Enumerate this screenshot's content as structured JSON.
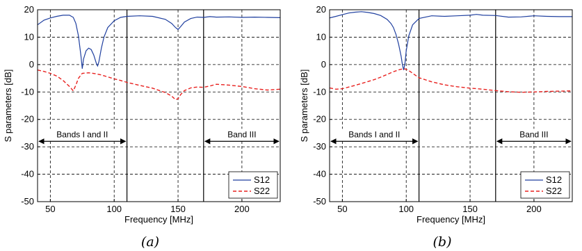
{
  "captions": [
    "(a)",
    "(b)"
  ],
  "colors": {
    "s12": "#1f3f9f",
    "s22": "#e8201e",
    "frame": "#000000",
    "grid": "#000000"
  },
  "chart_data": [
    {
      "type": "line",
      "xlabel": "Frequency [MHz]",
      "ylabel": "S parameters [dB]",
      "xlim": [
        40,
        230
      ],
      "ylim": [
        -50,
        20
      ],
      "xticks": [
        50,
        100,
        150,
        200
      ],
      "yticks": [
        -50,
        -40,
        -30,
        -20,
        -10,
        0,
        10,
        20
      ],
      "grid": true,
      "grid_style": "dashed",
      "legend_position": "bottom-right",
      "band_lines": [
        110,
        170
      ],
      "bands": [
        {
          "label": "Bands I and II",
          "from": 40,
          "to": 110,
          "level": -28
        },
        {
          "label": "Band III",
          "from": 170,
          "to": 230,
          "level": -28
        }
      ],
      "series": [
        {
          "name": "S12",
          "style": "solid",
          "x": [
            40,
            45,
            50,
            55,
            60,
            65,
            68,
            70,
            72,
            74,
            75,
            76,
            78,
            80,
            82,
            84,
            86,
            87,
            88,
            90,
            92,
            95,
            100,
            105,
            110,
            120,
            130,
            140,
            145,
            148,
            150,
            152,
            155,
            160,
            165,
            170,
            175,
            180,
            190,
            200,
            210,
            220,
            230
          ],
          "y": [
            14.5,
            16.2,
            17.0,
            17.6,
            18.0,
            18.0,
            17.2,
            15.0,
            10.5,
            3.0,
            -1.5,
            2.0,
            5.0,
            6.0,
            5.5,
            3.5,
            0.5,
            -0.5,
            1.0,
            6.0,
            10.0,
            13.5,
            16.0,
            17.2,
            17.6,
            17.8,
            17.6,
            16.5,
            15.0,
            13.5,
            12.8,
            13.8,
            15.5,
            16.8,
            17.3,
            17.2,
            17.5,
            17.3,
            17.4,
            17.2,
            17.3,
            17.2,
            17.1
          ]
        },
        {
          "name": "S22",
          "style": "dashed",
          "x": [
            40,
            45,
            50,
            55,
            60,
            65,
            68,
            70,
            72,
            75,
            80,
            85,
            90,
            95,
            100,
            105,
            110,
            120,
            130,
            140,
            145,
            148,
            150,
            152,
            155,
            160,
            165,
            170,
            175,
            180,
            190,
            200,
            210,
            220,
            230
          ],
          "y": [
            -2.0,
            -2.5,
            -3.2,
            -4.2,
            -5.8,
            -8.0,
            -9.6,
            -7.5,
            -5.0,
            -3.2,
            -3.0,
            -3.3,
            -3.8,
            -4.5,
            -5.2,
            -5.8,
            -6.5,
            -7.6,
            -8.6,
            -10.2,
            -11.5,
            -12.8,
            -12.5,
            -11.0,
            -9.5,
            -8.5,
            -8.2,
            -8.3,
            -7.8,
            -7.2,
            -7.5,
            -8.0,
            -8.8,
            -9.3,
            -9.0
          ]
        }
      ]
    },
    {
      "type": "line",
      "xlabel": "Frequency [MHz]",
      "ylabel": "S parameters [dB]",
      "xlim": [
        40,
        230
      ],
      "ylim": [
        -50,
        20
      ],
      "xticks": [
        50,
        100,
        150,
        200
      ],
      "yticks": [
        -50,
        -40,
        -30,
        -20,
        -10,
        0,
        10,
        20
      ],
      "grid": true,
      "grid_style": "dashed",
      "legend_position": "bottom-right",
      "band_lines": [
        110,
        170
      ],
      "bands": [
        {
          "label": "Bands I and II",
          "from": 40,
          "to": 110,
          "level": -28
        },
        {
          "label": "Band III",
          "from": 170,
          "to": 230,
          "level": -28
        }
      ],
      "series": [
        {
          "name": "S12",
          "style": "solid",
          "x": [
            40,
            45,
            50,
            55,
            60,
            65,
            70,
            75,
            80,
            85,
            88,
            90,
            92,
            94,
            96,
            97,
            98,
            99,
            100,
            102,
            105,
            110,
            120,
            130,
            140,
            150,
            155,
            160,
            170,
            180,
            190,
            200,
            210,
            220,
            230
          ],
          "y": [
            17.0,
            17.6,
            18.2,
            18.8,
            19.1,
            19.3,
            19.0,
            18.6,
            17.9,
            16.5,
            15.0,
            13.5,
            11.0,
            7.5,
            3.0,
            0.0,
            -2.0,
            0.5,
            5.0,
            10.5,
            14.5,
            16.8,
            17.8,
            17.6,
            17.8,
            18.0,
            18.3,
            18.0,
            17.9,
            17.3,
            17.4,
            17.8,
            17.6,
            17.5,
            17.5
          ]
        },
        {
          "name": "S22",
          "style": "dashed",
          "x": [
            40,
            45,
            50,
            55,
            60,
            65,
            70,
            75,
            80,
            85,
            90,
            95,
            98,
            100,
            103,
            106,
            110,
            120,
            130,
            140,
            150,
            160,
            170,
            180,
            190,
            200,
            210,
            220,
            230
          ],
          "y": [
            -8.5,
            -9.0,
            -8.8,
            -8.2,
            -7.6,
            -6.9,
            -6.2,
            -5.5,
            -4.6,
            -3.6,
            -2.6,
            -1.8,
            -1.5,
            -1.7,
            -2.5,
            -3.5,
            -4.8,
            -6.3,
            -7.4,
            -8.1,
            -8.6,
            -9.0,
            -9.5,
            -9.9,
            -10.1,
            -10.0,
            -9.8,
            -9.7,
            -9.6
          ]
        }
      ]
    }
  ]
}
